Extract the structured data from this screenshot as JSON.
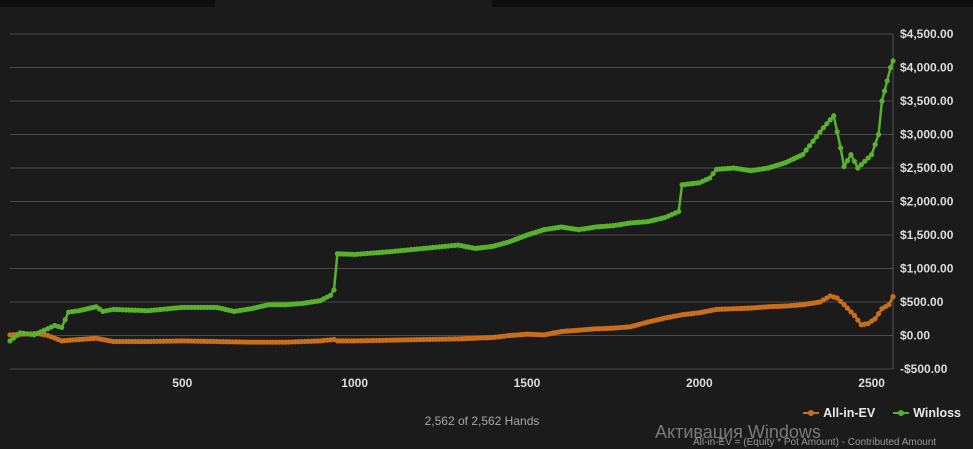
{
  "chart_data": {
    "type": "line",
    "title": "",
    "xlabel": "",
    "ylabel": "",
    "xlim": [
      0,
      2562
    ],
    "ylim": [
      -500,
      4500
    ],
    "x_ticks": [
      500,
      1000,
      1500,
      2000,
      2500
    ],
    "x_tick_labels": [
      "500",
      "1000",
      "1500",
      "2000",
      "2500"
    ],
    "y_ticks": [
      -500,
      0,
      500,
      1000,
      1500,
      2000,
      2500,
      3000,
      3500,
      4000,
      4500
    ],
    "y_tick_labels": [
      "-$500.00",
      "$0.00",
      "$500.00",
      "$1,000.00",
      "$1,500.00",
      "$2,000.00",
      "$2,500.00",
      "$3,000.00",
      "$3,500.00",
      "$4,000.00",
      "$4,500.00"
    ],
    "grid": "horizontal",
    "legend_position": "bottom-right",
    "series": [
      {
        "name": "All-in-EV",
        "color": "#c96f1c",
        "points": [
          [
            0,
            10
          ],
          [
            40,
            20
          ],
          [
            80,
            30
          ],
          [
            110,
            0
          ],
          [
            150,
            -80
          ],
          [
            200,
            -60
          ],
          [
            250,
            -40
          ],
          [
            300,
            -90
          ],
          [
            400,
            -90
          ],
          [
            500,
            -80
          ],
          [
            600,
            -90
          ],
          [
            700,
            -100
          ],
          [
            800,
            -100
          ],
          [
            900,
            -80
          ],
          [
            940,
            -60
          ],
          [
            950,
            -80
          ],
          [
            1000,
            -80
          ],
          [
            1100,
            -70
          ],
          [
            1200,
            -60
          ],
          [
            1300,
            -50
          ],
          [
            1350,
            -40
          ],
          [
            1400,
            -30
          ],
          [
            1450,
            0
          ],
          [
            1500,
            20
          ],
          [
            1550,
            10
          ],
          [
            1600,
            60
          ],
          [
            1650,
            80
          ],
          [
            1700,
            100
          ],
          [
            1750,
            110
          ],
          [
            1800,
            130
          ],
          [
            1850,
            200
          ],
          [
            1900,
            260
          ],
          [
            1950,
            310
          ],
          [
            2000,
            340
          ],
          [
            2050,
            390
          ],
          [
            2100,
            400
          ],
          [
            2150,
            410
          ],
          [
            2200,
            430
          ],
          [
            2250,
            440
          ],
          [
            2300,
            460
          ],
          [
            2350,
            500
          ],
          [
            2380,
            590
          ],
          [
            2400,
            560
          ],
          [
            2420,
            460
          ],
          [
            2450,
            300
          ],
          [
            2470,
            160
          ],
          [
            2490,
            180
          ],
          [
            2510,
            250
          ],
          [
            2530,
            400
          ],
          [
            2550,
            460
          ],
          [
            2562,
            580
          ]
        ]
      },
      {
        "name": "Winloss",
        "color": "#58b22c",
        "points": [
          [
            0,
            -80
          ],
          [
            30,
            40
          ],
          [
            70,
            10
          ],
          [
            100,
            80
          ],
          [
            130,
            150
          ],
          [
            150,
            120
          ],
          [
            170,
            350
          ],
          [
            200,
            370
          ],
          [
            250,
            430
          ],
          [
            270,
            360
          ],
          [
            300,
            390
          ],
          [
            400,
            370
          ],
          [
            500,
            420
          ],
          [
            600,
            420
          ],
          [
            650,
            360
          ],
          [
            700,
            400
          ],
          [
            750,
            460
          ],
          [
            800,
            460
          ],
          [
            850,
            480
          ],
          [
            900,
            520
          ],
          [
            930,
            600
          ],
          [
            940,
            680
          ],
          [
            950,
            1220
          ],
          [
            1000,
            1210
          ],
          [
            1100,
            1250
          ],
          [
            1200,
            1300
          ],
          [
            1300,
            1350
          ],
          [
            1350,
            1300
          ],
          [
            1400,
            1330
          ],
          [
            1450,
            1400
          ],
          [
            1500,
            1500
          ],
          [
            1550,
            1580
          ],
          [
            1600,
            1620
          ],
          [
            1650,
            1580
          ],
          [
            1700,
            1620
          ],
          [
            1750,
            1640
          ],
          [
            1800,
            1680
          ],
          [
            1850,
            1700
          ],
          [
            1900,
            1760
          ],
          [
            1940,
            1850
          ],
          [
            1950,
            2250
          ],
          [
            2000,
            2280
          ],
          [
            2030,
            2350
          ],
          [
            2050,
            2480
          ],
          [
            2100,
            2500
          ],
          [
            2150,
            2460
          ],
          [
            2200,
            2500
          ],
          [
            2250,
            2580
          ],
          [
            2300,
            2700
          ],
          [
            2330,
            2900
          ],
          [
            2360,
            3100
          ],
          [
            2390,
            3280
          ],
          [
            2410,
            2800
          ],
          [
            2420,
            2520
          ],
          [
            2440,
            2700
          ],
          [
            2460,
            2500
          ],
          [
            2480,
            2600
          ],
          [
            2500,
            2700
          ],
          [
            2520,
            3000
          ],
          [
            2530,
            3500
          ],
          [
            2545,
            3800
          ],
          [
            2555,
            4000
          ],
          [
            2562,
            4100
          ]
        ]
      }
    ]
  },
  "caption": {
    "hands": "2,562 of 2,562 Hands"
  },
  "legend": {
    "items": [
      {
        "label": "All-in-EV",
        "color": "#c96f1c"
      },
      {
        "label": "Winloss",
        "color": "#58b22c"
      }
    ]
  },
  "watermark": {
    "activation": "Активация Windows",
    "formula": "All-in-EV = (Equity * Pot Amount) - Contributed Amount"
  }
}
